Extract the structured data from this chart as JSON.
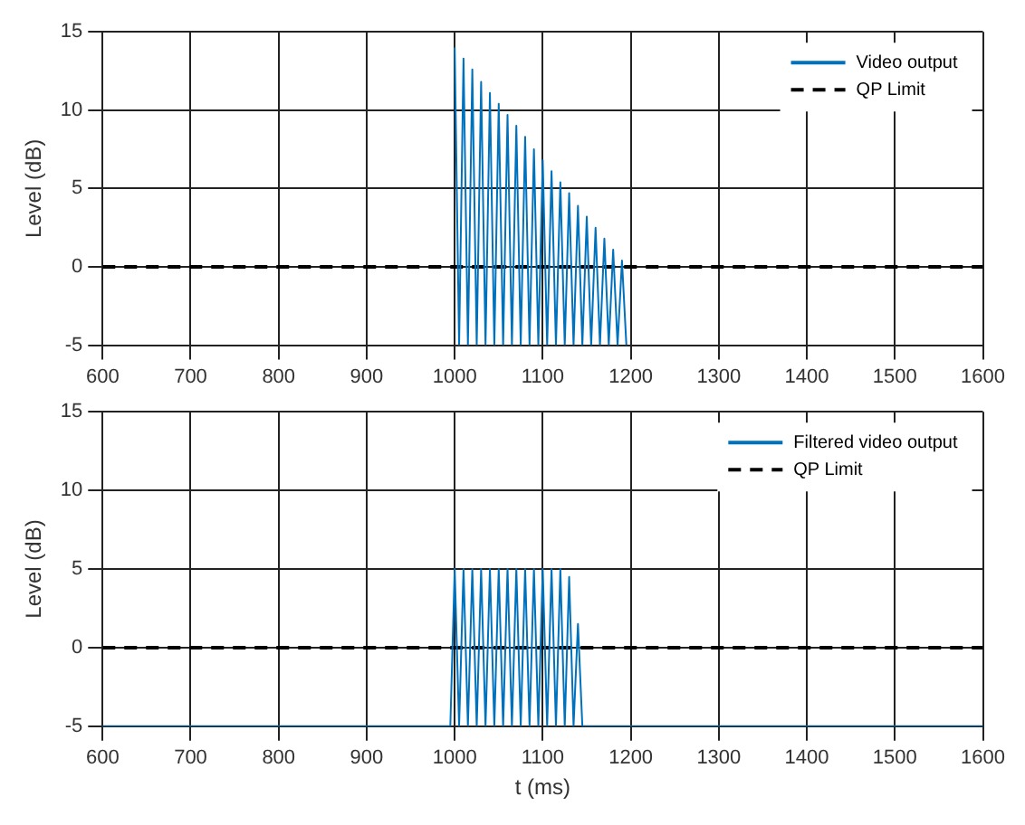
{
  "chart_data": [
    {
      "type": "line",
      "ylabel": "Level (dB)",
      "xlim": [
        600,
        1600
      ],
      "xticks": [
        600,
        700,
        800,
        900,
        1000,
        1100,
        1200,
        1300,
        1400,
        1500,
        1600
      ],
      "ylim": [
        -5,
        15
      ],
      "yticks": [
        -5,
        0,
        5,
        10,
        15
      ],
      "grid": true,
      "legend": "top right",
      "marker": "none",
      "series": [
        {
          "name": "Video output",
          "color": "#0072bd",
          "x": [
            1000,
            1005,
            1010,
            1015,
            1020,
            1025,
            1030,
            1035,
            1040,
            1045,
            1050,
            1055,
            1060,
            1065,
            1070,
            1075,
            1080,
            1085,
            1090,
            1095,
            1100,
            1105,
            1110,
            1115,
            1120,
            1125,
            1130,
            1135,
            1140,
            1145,
            1150,
            1155,
            1160,
            1165,
            1170,
            1175,
            1180,
            1185,
            1190,
            1195
          ],
          "values": [
            14,
            -5,
            13.3,
            -5,
            12.6,
            -5,
            11.8,
            -5,
            11.1,
            -5,
            10.4,
            -5,
            9.7,
            -5,
            9,
            -5,
            8.3,
            -5,
            7.5,
            -5,
            6.8,
            -5,
            6.1,
            -5,
            5.4,
            -5,
            4.7,
            -5,
            3.9,
            -5,
            3.2,
            -5,
            2.5,
            -5,
            1.8,
            -5,
            1.1,
            -5,
            0.4,
            -5
          ]
        },
        {
          "name": "QP Limit",
          "color": "#000000",
          "line_style": "dashed",
          "x": [
            600,
            1600
          ],
          "values": [
            0,
            0
          ]
        }
      ]
    },
    {
      "type": "line",
      "xlabel": "t (ms)",
      "ylabel": "Level (dB)",
      "xlim": [
        600,
        1600
      ],
      "xticks": [
        600,
        700,
        800,
        900,
        1000,
        1100,
        1200,
        1300,
        1400,
        1500,
        1600
      ],
      "ylim": [
        -5,
        15
      ],
      "yticks": [
        -5,
        0,
        5,
        10,
        15
      ],
      "grid": true,
      "legend": "top right",
      "marker": "none",
      "series": [
        {
          "name": "Filtered video output",
          "color": "#0072bd",
          "x": [
            600,
            995,
            1000,
            1005,
            1010,
            1015,
            1020,
            1025,
            1030,
            1035,
            1040,
            1045,
            1050,
            1055,
            1060,
            1065,
            1070,
            1075,
            1080,
            1085,
            1090,
            1095,
            1100,
            1105,
            1110,
            1115,
            1120,
            1125,
            1130,
            1135,
            1140,
            1145,
            1600
          ],
          "values": [
            -5,
            -5,
            5,
            -5,
            5,
            -5,
            5,
            -5,
            5,
            -5,
            5,
            -5,
            5,
            -5,
            5,
            -5,
            5,
            -5,
            5,
            -5,
            5,
            -5,
            5,
            -5,
            5,
            -5,
            5,
            -5,
            4.5,
            -5,
            1.5,
            -5,
            -5
          ]
        },
        {
          "name": "QP Limit",
          "color": "#000000",
          "line_style": "dashed",
          "x": [
            600,
            1600
          ],
          "values": [
            0,
            0
          ]
        }
      ]
    }
  ]
}
